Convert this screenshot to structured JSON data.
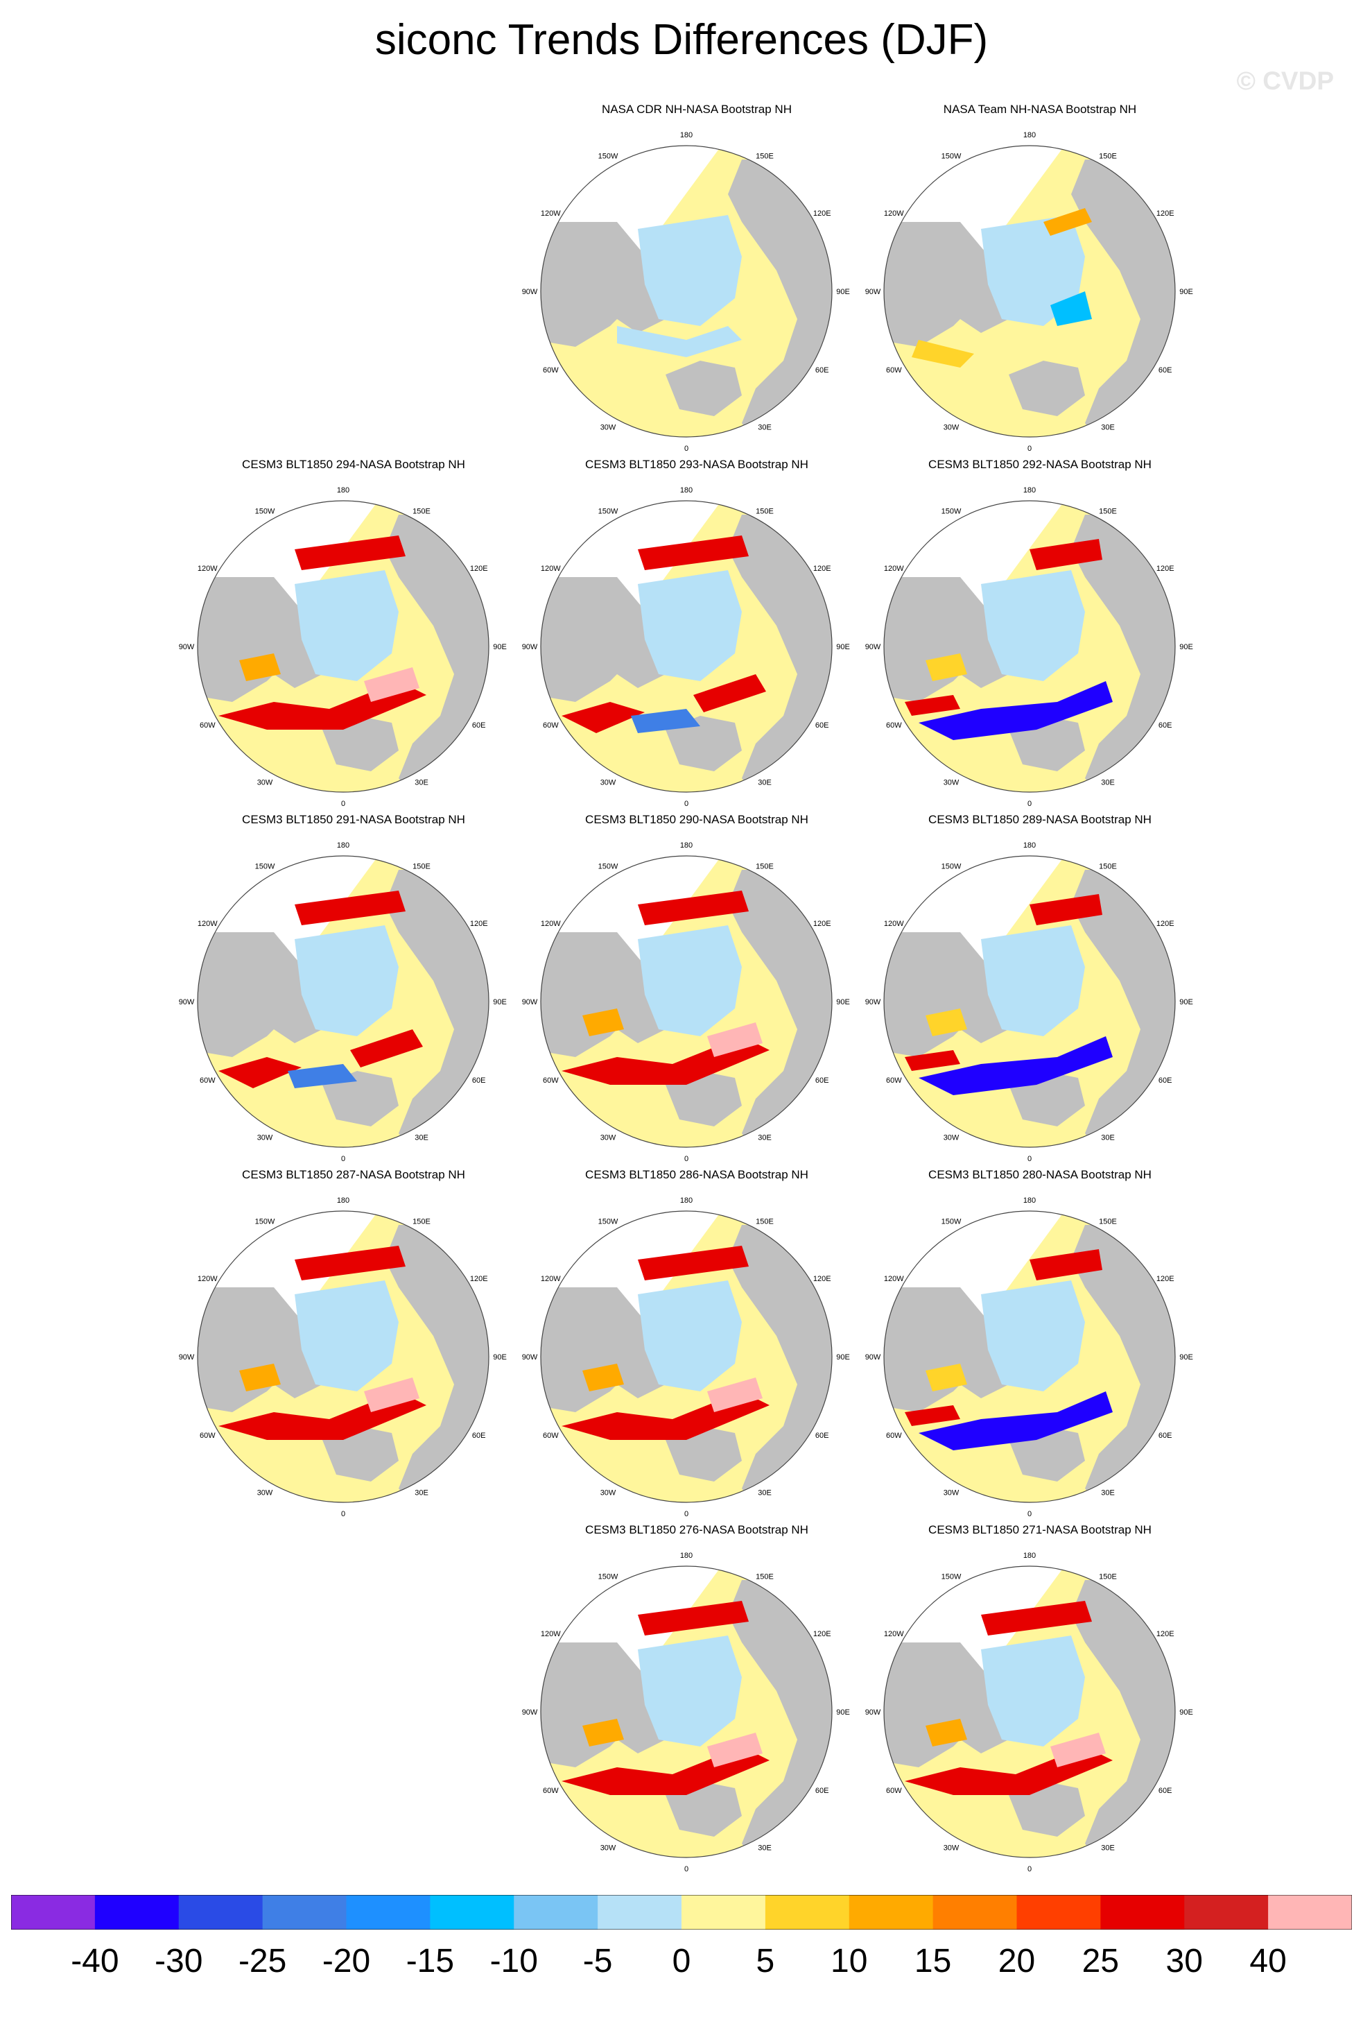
{
  "title": "siconc Trends Differences (DJF)",
  "watermark": "© CVDP",
  "colors": {
    "land": "#c0c0c0",
    "ocean_zero": "#fff69c",
    "ice_light": "#b6e1f7",
    "border": "#444444"
  },
  "map_labels": [
    "180",
    "150E",
    "120E",
    "90E",
    "60E",
    "30E",
    "0",
    "30W",
    "60W",
    "90W",
    "120W",
    "150W"
  ],
  "panels": [
    {
      "title": "NASA CDR NH-NASA Bootstrap NH",
      "pattern": "obs_cdr"
    },
    {
      "title": "NASA Team NH-NASA Bootstrap NH",
      "pattern": "obs_team"
    },
    {
      "title": "CESM3 BLT1850 294-NASA Bootstrap NH",
      "pattern": "model_warm"
    },
    {
      "title": "CESM3 BLT1850 293-NASA Bootstrap NH",
      "pattern": "model_mixed"
    },
    {
      "title": "CESM3 BLT1850 292-NASA Bootstrap NH",
      "pattern": "model_cool"
    },
    {
      "title": "CESM3 BLT1850 291-NASA Bootstrap NH",
      "pattern": "model_mixed"
    },
    {
      "title": "CESM3 BLT1850 290-NASA Bootstrap NH",
      "pattern": "model_warm"
    },
    {
      "title": "CESM3 BLT1850 289-NASA Bootstrap NH",
      "pattern": "model_cool"
    },
    {
      "title": "CESM3 BLT1850 287-NASA Bootstrap NH",
      "pattern": "model_warm"
    },
    {
      "title": "CESM3 BLT1850 286-NASA Bootstrap NH",
      "pattern": "model_warm"
    },
    {
      "title": "CESM3 BLT1850 280-NASA Bootstrap NH",
      "pattern": "model_cool"
    },
    {
      "title": "CESM3 BLT1850 276-NASA Bootstrap NH",
      "pattern": "model_warm"
    },
    {
      "title": "CESM3 BLT1850 271-NASA Bootstrap NH",
      "pattern": "model_warm"
    }
  ],
  "colorbar": {
    "colors": [
      "#8a2be2",
      "#1f00ff",
      "#2a4be6",
      "#3f7fe6",
      "#1e90ff",
      "#00bfff",
      "#7ac5f4",
      "#b6e1f7",
      "#fff69c",
      "#ffd42a",
      "#ffaa00",
      "#ff7f00",
      "#ff3f00",
      "#e60000",
      "#d42020",
      "#ffb6b6"
    ],
    "ticks": [
      "-40",
      "-30",
      "-25",
      "-20",
      "-15",
      "-10",
      "-5",
      "0",
      "5",
      "10",
      "15",
      "20",
      "25",
      "30",
      "40"
    ]
  }
}
